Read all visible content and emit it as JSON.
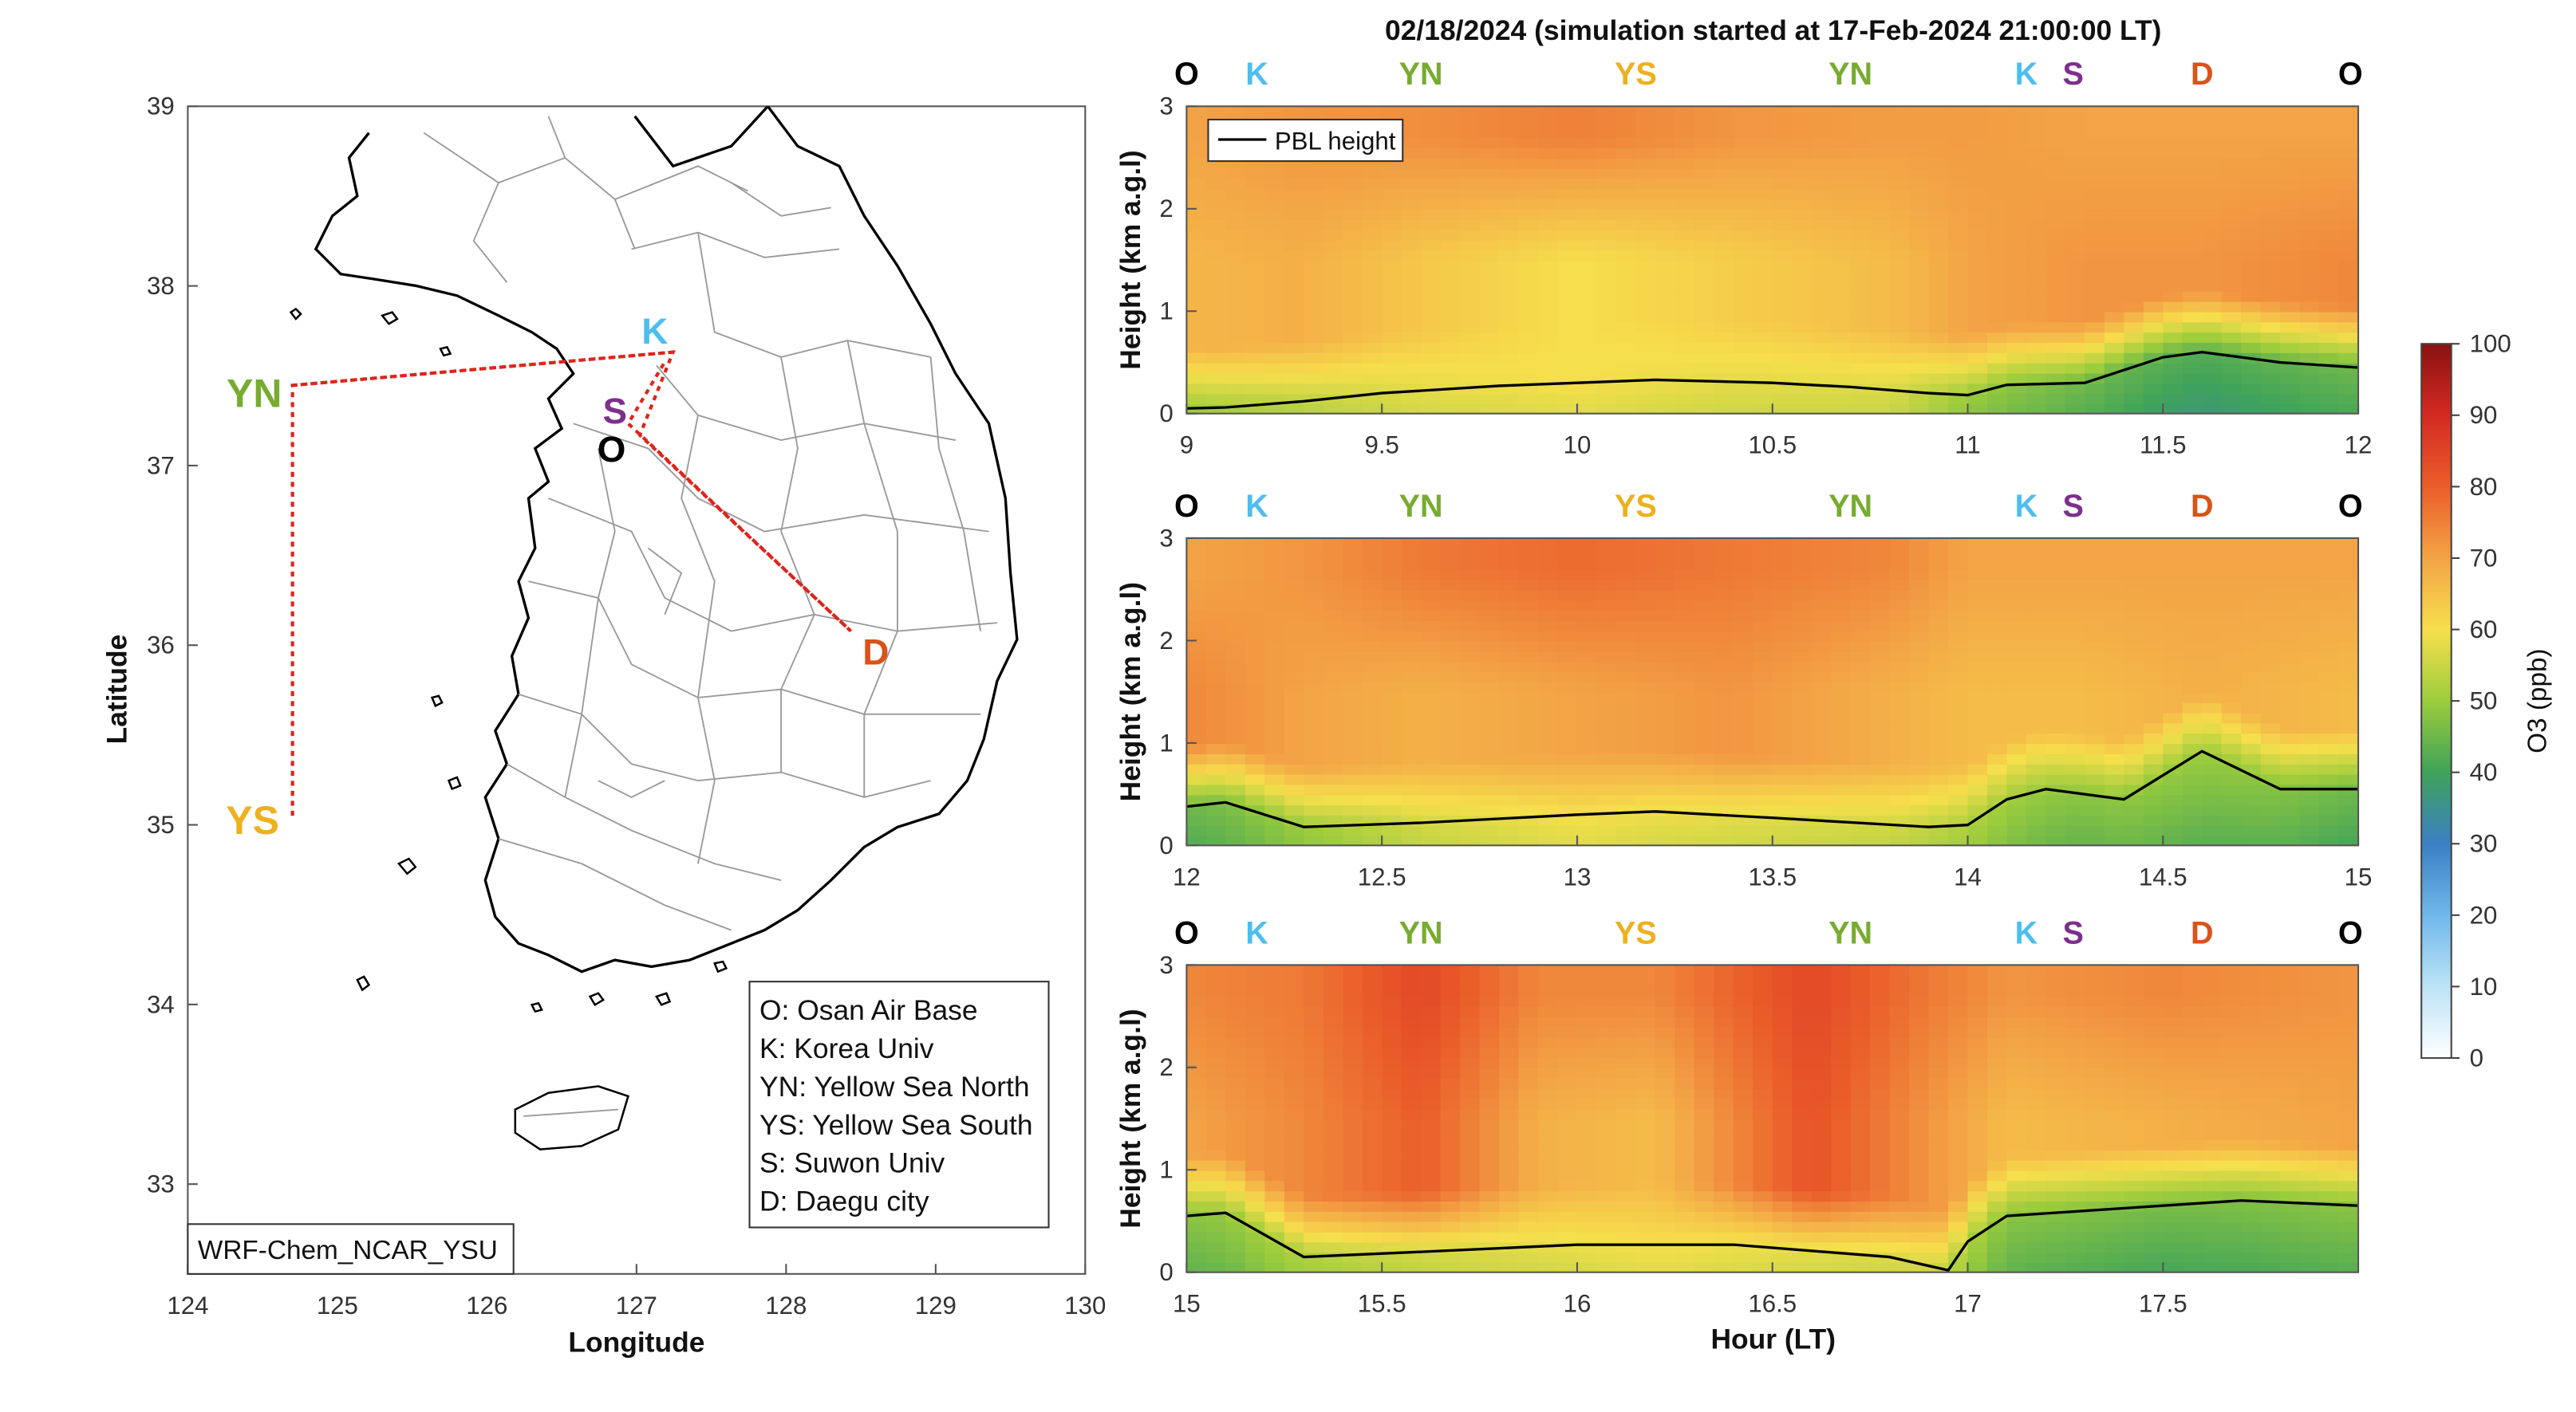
{
  "chart_data": [
    {
      "type": "map",
      "model_label": "WRF-Chem_NCAR_YSU",
      "xlabel": "Longitude",
      "ylabel": "Latitude",
      "xlim": [
        124,
        130
      ],
      "ylim": [
        32.5,
        39
      ],
      "xticks": [
        "124",
        "125",
        "126",
        "127",
        "128",
        "129",
        "130"
      ],
      "yticks": [
        "33",
        "34",
        "35",
        "36",
        "37",
        "38",
        "39"
      ],
      "sites": [
        {
          "code": "YN",
          "lon": 124.35,
          "lat": 37.42,
          "color": "#77ac30"
        },
        {
          "code": "YS",
          "lon": 124.35,
          "lat": 35.0,
          "color": "#edb120"
        },
        {
          "code": "K",
          "lon": 127.1,
          "lat": 37.75,
          "color": "#4dbeee"
        },
        {
          "code": "S",
          "lon": 126.87,
          "lat": 37.3,
          "color": "#7e2f8e"
        },
        {
          "code": "O",
          "lon": 126.85,
          "lat": 37.09,
          "color": "#000000"
        },
        {
          "code": "D",
          "lon": 128.5,
          "lat": 35.85,
          "color": "#d95319"
        }
      ],
      "flight_path": [
        [
          127.25,
          37.62
        ],
        [
          124.7,
          37.45
        ],
        [
          124.7,
          35.05
        ],
        [
          124.7,
          37.45
        ],
        [
          127.25,
          37.62
        ],
        [
          127.0,
          37.55
        ],
        [
          128.55,
          36.08
        ],
        [
          126.85,
          37.5
        ]
      ],
      "legend": [
        "O: Osan Air Base",
        "K: Korea Univ",
        "YN: Yellow Sea North",
        "YS: Yellow Sea South",
        "S: Suwon Univ",
        "D: Daegu city"
      ]
    },
    {
      "type": "heatmap",
      "title": "02/18/2024 (simulation started at 17-Feb-2024 21:00:00 LT)",
      "xlabel": "Hour (LT)",
      "ylabel": "Height (km a.g.l)",
      "colorbar_label": "O3 (ppb)",
      "colorbar_range": [
        0,
        100
      ],
      "colorbar_ticks": [
        "100",
        "90",
        "80",
        "70",
        "60",
        "50",
        "40",
        "30",
        "20",
        "10",
        "0"
      ],
      "legend": [
        "PBL height"
      ],
      "panels": [
        {
          "xlim": [
            9,
            12
          ],
          "xticks": [
            "9",
            "9.5",
            "10",
            "10.5",
            "11",
            "11.5",
            "12"
          ],
          "yticks": [
            "0",
            "1",
            "2",
            "3"
          ],
          "ylim": [
            0,
            3
          ],
          "top_labels": [
            {
              "t": 9.0,
              "code": "O"
            },
            {
              "t": 9.18,
              "code": "K"
            },
            {
              "t": 9.6,
              "code": "YN"
            },
            {
              "t": 10.15,
              "code": "YS"
            },
            {
              "t": 10.7,
              "code": "YN"
            },
            {
              "t": 11.15,
              "code": "K"
            },
            {
              "t": 11.27,
              "code": "S"
            },
            {
              "t": 11.6,
              "code": "D"
            },
            {
              "t": 11.98,
              "code": "O"
            }
          ],
          "pbl": [
            [
              9.0,
              0.05
            ],
            [
              9.1,
              0.06
            ],
            [
              9.3,
              0.12
            ],
            [
              9.5,
              0.2
            ],
            [
              9.8,
              0.27
            ],
            [
              10.0,
              0.3
            ],
            [
              10.2,
              0.33
            ],
            [
              10.5,
              0.3
            ],
            [
              10.7,
              0.26
            ],
            [
              10.9,
              0.2
            ],
            [
              11.0,
              0.18
            ],
            [
              11.1,
              0.28
            ],
            [
              11.3,
              0.3
            ],
            [
              11.5,
              0.55
            ],
            [
              11.6,
              0.6
            ],
            [
              11.8,
              0.5
            ],
            [
              12.0,
              0.45
            ]
          ],
          "bands": [
            {
              "t": [
                9.0,
                9.3,
                9.6,
                10.0,
                10.4,
                10.8,
                11.0,
                11.3,
                11.6,
                12.0
              ],
              "low": [
                50,
                54,
                58,
                60,
                58,
                57,
                50,
                45,
                42,
                45
              ],
              "mid": [
                67,
                68,
                64,
                60,
                63,
                66,
                70,
                72,
                72,
                74
              ],
              "high": [
                70,
                72,
                73,
                75,
                72,
                71,
                71,
                70,
                70,
                70
              ]
            }
          ]
        },
        {
          "xlim": [
            12,
            15
          ],
          "xticks": [
            "12",
            "12.5",
            "13",
            "13.5",
            "14",
            "14.5",
            "15"
          ],
          "yticks": [
            "0",
            "1",
            "2",
            "3"
          ],
          "ylim": [
            0,
            3
          ],
          "top_labels": [
            {
              "t": 12.0,
              "code": "O"
            },
            {
              "t": 12.18,
              "code": "K"
            },
            {
              "t": 12.6,
              "code": "YN"
            },
            {
              "t": 13.15,
              "code": "YS"
            },
            {
              "t": 13.7,
              "code": "YN"
            },
            {
              "t": 14.15,
              "code": "K"
            },
            {
              "t": 14.27,
              "code": "S"
            },
            {
              "t": 14.6,
              "code": "D"
            },
            {
              "t": 14.98,
              "code": "O"
            }
          ],
          "pbl": [
            [
              12.0,
              0.38
            ],
            [
              12.1,
              0.42
            ],
            [
              12.3,
              0.18
            ],
            [
              12.6,
              0.22
            ],
            [
              13.0,
              0.3
            ],
            [
              13.2,
              0.33
            ],
            [
              13.5,
              0.27
            ],
            [
              13.9,
              0.18
            ],
            [
              14.0,
              0.2
            ],
            [
              14.1,
              0.45
            ],
            [
              14.2,
              0.55
            ],
            [
              14.4,
              0.45
            ],
            [
              14.6,
              0.92
            ],
            [
              14.8,
              0.55
            ],
            [
              15.0,
              0.55
            ]
          ],
          "bands": [
            {
              "t": [
                12.0,
                12.3,
                12.6,
                13.0,
                13.4,
                13.8,
                14.0,
                14.3,
                14.6,
                15.0
              ],
              "low": [
                45,
                50,
                56,
                60,
                58,
                56,
                52,
                48,
                50,
                45
              ],
              "mid": [
                74,
                70,
                68,
                70,
                72,
                68,
                66,
                66,
                68,
                66
              ],
              "high": [
                70,
                72,
                76,
                78,
                76,
                74,
                70,
                70,
                70,
                70
              ]
            }
          ]
        },
        {
          "xlim": [
            15,
            18
          ],
          "xticks": [
            "15",
            "15.5",
            "16",
            "16.5",
            "17",
            "17.5"
          ],
          "yticks": [
            "0",
            "1",
            "2",
            "3"
          ],
          "ylim": [
            0,
            3
          ],
          "top_labels": [
            {
              "t": 15.0,
              "code": "O"
            },
            {
              "t": 15.18,
              "code": "K"
            },
            {
              "t": 15.6,
              "code": "YN"
            },
            {
              "t": 16.15,
              "code": "YS"
            },
            {
              "t": 16.7,
              "code": "YN"
            },
            {
              "t": 17.15,
              "code": "K"
            },
            {
              "t": 17.27,
              "code": "S"
            },
            {
              "t": 17.6,
              "code": "D"
            },
            {
              "t": 17.98,
              "code": "O"
            }
          ],
          "pbl": [
            [
              15.0,
              0.55
            ],
            [
              15.1,
              0.58
            ],
            [
              15.3,
              0.15
            ],
            [
              15.6,
              0.2
            ],
            [
              16.0,
              0.27
            ],
            [
              16.4,
              0.27
            ],
            [
              16.8,
              0.15
            ],
            [
              16.95,
              0.02
            ],
            [
              17.0,
              0.3
            ],
            [
              17.1,
              0.55
            ],
            [
              17.5,
              0.65
            ],
            [
              17.7,
              0.7
            ],
            [
              18.0,
              0.65
            ]
          ],
          "bands": [
            {
              "t": [
                15.0,
                15.3,
                15.6,
                15.9,
                16.2,
                16.6,
                16.9,
                17.1,
                17.5,
                18.0
              ],
              "low": [
                48,
                52,
                56,
                58,
                60,
                58,
                56,
                48,
                46,
                48
              ],
              "mid": [
                70,
                74,
                80,
                68,
                66,
                82,
                72,
                66,
                68,
                70
              ],
              "high": [
                74,
                76,
                84,
                74,
                74,
                84,
                76,
                72,
                74,
                72
              ]
            }
          ]
        }
      ]
    }
  ]
}
